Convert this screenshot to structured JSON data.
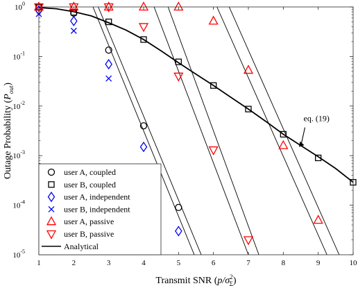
{
  "chart_data": {
    "type": "line",
    "xlabel_main": "Transmit SNR (",
    "xlabel_math": "p/σ",
    "xlabel_sup": "2",
    "xlabel_sub": "Σ",
    "xlabel_end": ")",
    "ylabel_main": "Outage Probability (",
    "ylabel_math": "P",
    "ylabel_sub": "out",
    "ylabel_end": ")",
    "xlim": [
      1,
      10
    ],
    "ylim": [
      1e-05,
      1
    ],
    "yscale": "log",
    "x_ticks": [
      "1",
      "2",
      "3",
      "4",
      "5",
      "6",
      "7",
      "8",
      "9",
      "10"
    ],
    "y_ticks": [
      {
        "base": "10",
        "exp": "0"
      },
      {
        "base": "10",
        "exp": "-1"
      },
      {
        "base": "10",
        "exp": "-2"
      },
      {
        "base": "10",
        "exp": "-3"
      },
      {
        "base": "10",
        "exp": "-4"
      },
      {
        "base": "10",
        "exp": "-5"
      }
    ],
    "legend_position": "bottom-left",
    "series": [
      {
        "name": "user A, coupled",
        "marker": "circle",
        "color": "#000000",
        "x": [
          1,
          2,
          3,
          4,
          5
        ],
        "y": [
          1.0,
          0.75,
          0.135,
          0.004,
          9e-05
        ]
      },
      {
        "name": "user B, coupled",
        "marker": "square",
        "color": "#000000",
        "x": [
          1,
          2,
          3,
          4,
          5,
          6,
          7,
          8,
          9,
          10
        ],
        "y": [
          0.98,
          0.78,
          0.5,
          0.22,
          0.078,
          0.026,
          0.0087,
          0.0027,
          0.0009,
          0.00029
        ]
      },
      {
        "name": "user A, independent",
        "marker": "diamond",
        "color": "#0000ff",
        "x": [
          1,
          2,
          3,
          4,
          5
        ],
        "y": [
          0.85,
          0.52,
          0.07,
          0.0015,
          3e-05
        ]
      },
      {
        "name": "user B, independent",
        "marker": "x",
        "color": "#0000ff",
        "x": [
          1,
          2,
          3,
          4
        ],
        "y": [
          0.72,
          0.33,
          0.036,
          0.0006
        ]
      },
      {
        "name": "user A, passive",
        "marker": "triangle-up",
        "color": "#ff0000",
        "x": [
          1,
          2,
          3,
          4,
          5,
          6,
          7,
          8,
          9
        ],
        "y": [
          1.0,
          1.0,
          1.0,
          1.0,
          1.0,
          0.52,
          0.053,
          0.0016,
          5e-05
        ]
      },
      {
        "name": "user B, passive",
        "marker": "triangle-down",
        "color": "#ff0000",
        "x": [
          1,
          2,
          3,
          4,
          5,
          6,
          7
        ],
        "y": [
          1.0,
          1.0,
          1.0,
          0.4,
          0.04,
          0.0013,
          2e-05
        ]
      },
      {
        "name": "Analytical",
        "marker": "line",
        "color": "#000000"
      }
    ],
    "analytical_curves": [
      {
        "x": [
          1,
          1.5,
          2,
          2.5,
          3,
          3.5,
          4,
          4.5,
          5,
          5.5,
          6,
          6.5,
          7,
          7.5,
          8,
          8.5,
          9,
          9.5,
          10
        ],
        "y": [
          0.97,
          0.92,
          0.8,
          0.66,
          0.48,
          0.34,
          0.22,
          0.13,
          0.075,
          0.044,
          0.026,
          0.015,
          0.0087,
          0.0049,
          0.0027,
          0.0016,
          0.00095,
          0.00055,
          0.00029
        ]
      },
      {
        "x": [
          2.55,
          5.45
        ],
        "y": [
          1.0,
          1e-05
        ]
      },
      {
        "x": [
          2.7,
          5.65
        ],
        "y": [
          1.0,
          1e-05
        ]
      },
      {
        "x": [
          4.3,
          7.0
        ],
        "y": [
          1.0,
          1e-05
        ]
      },
      {
        "x": [
          4.7,
          7.3
        ],
        "y": [
          1.0,
          1e-05
        ]
      },
      {
        "x": [
          6.1,
          9.25
        ],
        "y": [
          1.0,
          1e-05
        ]
      },
      {
        "x": [
          6.45,
          9.6
        ],
        "y": [
          1.0,
          1e-05
        ]
      }
    ],
    "annotation": {
      "text": "eq. (19)",
      "x": 8.55,
      "y": 0.0023
    }
  }
}
